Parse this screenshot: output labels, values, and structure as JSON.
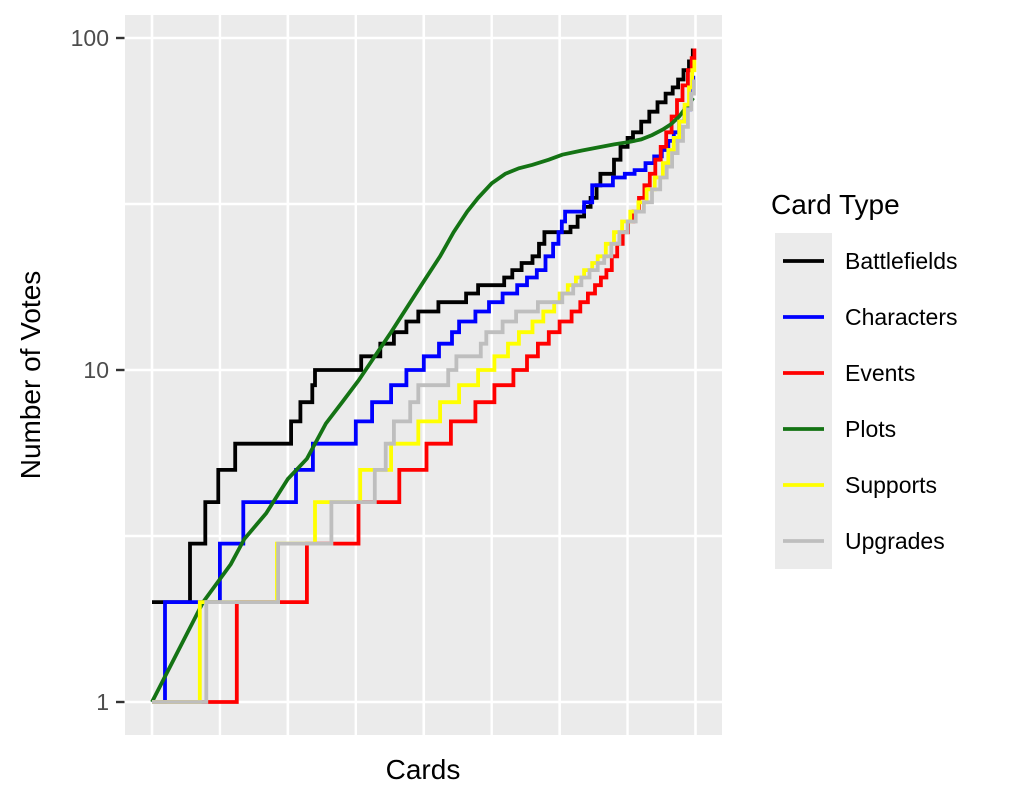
{
  "axes": {
    "x_title": "Cards",
    "y_title": "Number of Votes"
  },
  "legend": {
    "title": "Card Type"
  },
  "chart_data": {
    "type": "line",
    "title": "",
    "xlabel": "Cards",
    "ylabel": "Number of Votes",
    "y_scale": "log10",
    "ylim": [
      0.85,
      110
    ],
    "y_major_ticks": [
      1,
      10,
      100
    ],
    "y_minor_gridlines": [
      3.1623,
      31.623
    ],
    "x_axis_note": "cards sorted by ascending vote count, position normalized 0-1, no x tick labels shown",
    "x_major_gridlines": [
      0,
      0.25,
      0.5,
      0.75,
      1
    ],
    "x_minor_gridlines": [
      0.125,
      0.375,
      0.625,
      0.875
    ],
    "grid": true,
    "panel_bg": "#EBEBEB",
    "grid_color": "#FFFFFF",
    "tick_color": "#333333",
    "legend_position": "right",
    "series": [
      {
        "name": "Battlefields",
        "color": "#000000",
        "style": "step",
        "points": [
          [
            0,
            2
          ],
          [
            0.07,
            3
          ],
          [
            0.098,
            4
          ],
          [
            0.122,
            5
          ],
          [
            0.153,
            6
          ],
          [
            0.256,
            7
          ],
          [
            0.273,
            8
          ],
          [
            0.295,
            9
          ],
          [
            0.3,
            10
          ],
          [
            0.385,
            11
          ],
          [
            0.42,
            12
          ],
          [
            0.445,
            13
          ],
          [
            0.468,
            14
          ],
          [
            0.49,
            15
          ],
          [
            0.527,
            16
          ],
          [
            0.578,
            17
          ],
          [
            0.6,
            18
          ],
          [
            0.648,
            19
          ],
          [
            0.663,
            20
          ],
          [
            0.68,
            21
          ],
          [
            0.7,
            22
          ],
          [
            0.712,
            24
          ],
          [
            0.722,
            26
          ],
          [
            0.77,
            27
          ],
          [
            0.783,
            29
          ],
          [
            0.795,
            31
          ],
          [
            0.807,
            33
          ],
          [
            0.818,
            36
          ],
          [
            0.825,
            39
          ],
          [
            0.85,
            43
          ],
          [
            0.862,
            47
          ],
          [
            0.875,
            50
          ],
          [
            0.885,
            52
          ],
          [
            0.9,
            56
          ],
          [
            0.915,
            60
          ],
          [
            0.93,
            64
          ],
          [
            0.945,
            68
          ],
          [
            0.958,
            71
          ],
          [
            0.968,
            75
          ],
          [
            0.978,
            80
          ],
          [
            0.988,
            85
          ],
          [
            0.995,
            93
          ]
        ]
      },
      {
        "name": "Characters",
        "color": "#0000FF",
        "style": "step",
        "points": [
          [
            0,
            1
          ],
          [
            0.024,
            2
          ],
          [
            0.125,
            3
          ],
          [
            0.168,
            4
          ],
          [
            0.265,
            5
          ],
          [
            0.296,
            6
          ],
          [
            0.375,
            7
          ],
          [
            0.405,
            8
          ],
          [
            0.44,
            9
          ],
          [
            0.468,
            10
          ],
          [
            0.5,
            11
          ],
          [
            0.528,
            12
          ],
          [
            0.552,
            13
          ],
          [
            0.565,
            14
          ],
          [
            0.595,
            15
          ],
          [
            0.62,
            16
          ],
          [
            0.645,
            17
          ],
          [
            0.672,
            18
          ],
          [
            0.69,
            19
          ],
          [
            0.708,
            20
          ],
          [
            0.724,
            22
          ],
          [
            0.738,
            24
          ],
          [
            0.748,
            26
          ],
          [
            0.754,
            28
          ],
          [
            0.76,
            30
          ],
          [
            0.795,
            32
          ],
          [
            0.81,
            36
          ],
          [
            0.848,
            38
          ],
          [
            0.87,
            39
          ],
          [
            0.888,
            40
          ],
          [
            0.908,
            42
          ],
          [
            0.924,
            44
          ],
          [
            0.938,
            46
          ],
          [
            0.95,
            49
          ],
          [
            0.96,
            52
          ],
          [
            0.97,
            56
          ],
          [
            0.98,
            61
          ],
          [
            0.99,
            68
          ],
          [
            0.996,
            77
          ]
        ]
      },
      {
        "name": "Events",
        "color": "#FF0000",
        "style": "step",
        "points": [
          [
            0,
            1
          ],
          [
            0.156,
            2
          ],
          [
            0.285,
            3
          ],
          [
            0.38,
            4
          ],
          [
            0.455,
            5
          ],
          [
            0.505,
            6
          ],
          [
            0.55,
            7
          ],
          [
            0.595,
            8
          ],
          [
            0.63,
            9
          ],
          [
            0.665,
            10
          ],
          [
            0.69,
            11
          ],
          [
            0.71,
            12
          ],
          [
            0.73,
            13
          ],
          [
            0.75,
            14
          ],
          [
            0.772,
            15
          ],
          [
            0.788,
            16
          ],
          [
            0.802,
            17
          ],
          [
            0.815,
            18
          ],
          [
            0.826,
            19
          ],
          [
            0.836,
            20
          ],
          [
            0.846,
            22
          ],
          [
            0.856,
            24
          ],
          [
            0.866,
            26
          ],
          [
            0.876,
            28
          ],
          [
            0.886,
            30
          ],
          [
            0.896,
            33
          ],
          [
            0.906,
            36
          ],
          [
            0.916,
            39
          ],
          [
            0.926,
            43
          ],
          [
            0.936,
            47
          ],
          [
            0.946,
            52
          ],
          [
            0.956,
            58
          ],
          [
            0.966,
            65
          ],
          [
            0.976,
            72
          ],
          [
            0.986,
            80
          ],
          [
            0.993,
            87
          ],
          [
            0.998,
            93
          ]
        ]
      },
      {
        "name": "Plots",
        "color": "#147314",
        "style": "line",
        "points": [
          [
            0,
            1
          ],
          [
            0.094,
            2
          ],
          [
            0.145,
            2.6
          ],
          [
            0.17,
            3.1
          ],
          [
            0.21,
            3.7
          ],
          [
            0.25,
            4.7
          ],
          [
            0.285,
            5.4
          ],
          [
            0.32,
            6.9
          ],
          [
            0.35,
            8
          ],
          [
            0.38,
            9.3
          ],
          [
            0.41,
            11
          ],
          [
            0.44,
            13
          ],
          [
            0.47,
            15.5
          ],
          [
            0.5,
            18.5
          ],
          [
            0.53,
            22
          ],
          [
            0.555,
            26
          ],
          [
            0.58,
            30
          ],
          [
            0.6,
            33
          ],
          [
            0.625,
            36.5
          ],
          [
            0.65,
            39
          ],
          [
            0.675,
            40.5
          ],
          [
            0.7,
            41.5
          ],
          [
            0.73,
            43
          ],
          [
            0.755,
            44.5
          ],
          [
            0.79,
            45.8
          ],
          [
            0.82,
            46.8
          ],
          [
            0.85,
            47.8
          ],
          [
            0.875,
            48.5
          ],
          [
            0.9,
            49.5
          ],
          [
            0.92,
            51
          ],
          [
            0.94,
            53
          ],
          [
            0.955,
            55
          ],
          [
            0.97,
            58
          ],
          [
            0.98,
            61
          ],
          [
            0.99,
            64
          ],
          [
            0.996,
            66
          ]
        ]
      },
      {
        "name": "Supports",
        "color": "#FFFF00",
        "style": "step",
        "points": [
          [
            0,
            1
          ],
          [
            0.088,
            2
          ],
          [
            0.23,
            3
          ],
          [
            0.3,
            4
          ],
          [
            0.383,
            5
          ],
          [
            0.44,
            6
          ],
          [
            0.49,
            7
          ],
          [
            0.53,
            8
          ],
          [
            0.565,
            9
          ],
          [
            0.6,
            10
          ],
          [
            0.63,
            11
          ],
          [
            0.655,
            12
          ],
          [
            0.675,
            13
          ],
          [
            0.7,
            14
          ],
          [
            0.72,
            15
          ],
          [
            0.74,
            16
          ],
          [
            0.75,
            17
          ],
          [
            0.765,
            18
          ],
          [
            0.78,
            19
          ],
          [
            0.795,
            20
          ],
          [
            0.81,
            21
          ],
          [
            0.82,
            22
          ],
          [
            0.835,
            24
          ],
          [
            0.85,
            26
          ],
          [
            0.865,
            28
          ],
          [
            0.88,
            30
          ],
          [
            0.895,
            32
          ],
          [
            0.91,
            35
          ],
          [
            0.925,
            38
          ],
          [
            0.94,
            42
          ],
          [
            0.95,
            46
          ],
          [
            0.96,
            50
          ],
          [
            0.97,
            56
          ],
          [
            0.98,
            63
          ],
          [
            0.988,
            71
          ],
          [
            0.994,
            80
          ],
          [
            0.998,
            86
          ]
        ]
      },
      {
        "name": "Upgrades",
        "color": "#BEBEBE",
        "style": "step",
        "points": [
          [
            0,
            1
          ],
          [
            0.1,
            2
          ],
          [
            0.232,
            3
          ],
          [
            0.33,
            4
          ],
          [
            0.41,
            5
          ],
          [
            0.43,
            6
          ],
          [
            0.445,
            7
          ],
          [
            0.475,
            8
          ],
          [
            0.49,
            9
          ],
          [
            0.545,
            10
          ],
          [
            0.56,
            11
          ],
          [
            0.605,
            12
          ],
          [
            0.615,
            13
          ],
          [
            0.645,
            14
          ],
          [
            0.67,
            15
          ],
          [
            0.71,
            16
          ],
          [
            0.755,
            17
          ],
          [
            0.775,
            18
          ],
          [
            0.79,
            19
          ],
          [
            0.805,
            20
          ],
          [
            0.82,
            21
          ],
          [
            0.832,
            22
          ],
          [
            0.845,
            24
          ],
          [
            0.86,
            26
          ],
          [
            0.875,
            28
          ],
          [
            0.89,
            30
          ],
          [
            0.905,
            32
          ],
          [
            0.92,
            35
          ],
          [
            0.935,
            38
          ],
          [
            0.947,
            41
          ],
          [
            0.957,
            45
          ],
          [
            0.967,
            49
          ],
          [
            0.977,
            54
          ],
          [
            0.986,
            61
          ],
          [
            0.992,
            68
          ],
          [
            0.997,
            75
          ]
        ]
      }
    ]
  }
}
